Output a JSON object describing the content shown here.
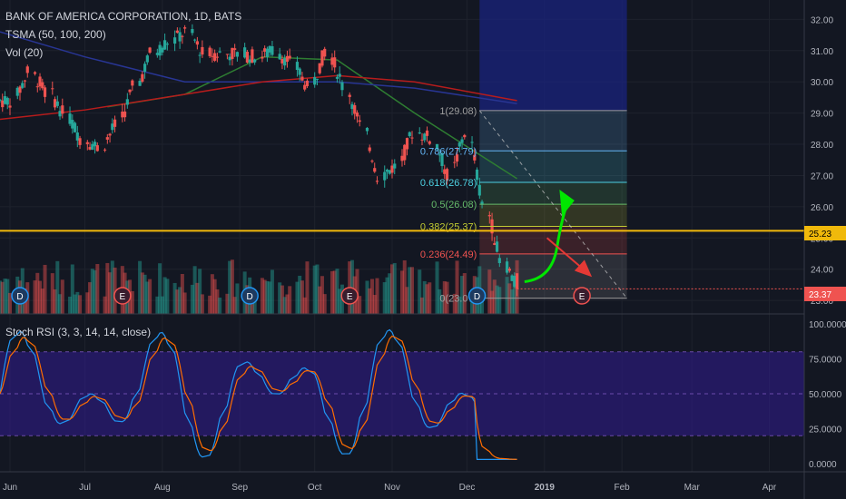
{
  "colors": {
    "bg": "#131722",
    "up": "#26a69a",
    "down": "#ef5350",
    "sma50": "#2e7d32",
    "sma100": "#283593",
    "sma200": "#b71c1c",
    "fib_line": "#cccccc",
    "hline": "#f0b90b",
    "stoch_k": "#2196f3",
    "stoch_d": "#ff6d00",
    "stoch_band": "#311b92",
    "arrow_up": "#00e600",
    "arrow_down": "#e53935"
  },
  "header": {
    "symbol_line": "BANK OF AMERICA CORPORATION, 1D, BATS",
    "ma_line": "TSMA (50, 100, 200)",
    "vol_line": "Vol (20)"
  },
  "price_axis": {
    "ticks": [
      "32.00",
      "31.00",
      "30.00",
      "29.00",
      "28.00",
      "27.00",
      "26.00",
      "25.00",
      "24.00",
      "23.00"
    ],
    "hline_label": "25.23",
    "last_label": "23.37"
  },
  "stoch": {
    "title": "Stoch RSI (3, 3, 14, 14, close)",
    "ticks": [
      "100.0000",
      "75.0000",
      "50.0000",
      "25.0000",
      "0.0000"
    ],
    "upper_band": 80,
    "lower_band": 20
  },
  "time_axis": [
    "Jun",
    "Jul",
    "Aug",
    "Sep",
    "Oct",
    "Nov",
    "Dec",
    "2019",
    "Feb",
    "Mar",
    "Apr"
  ],
  "fib_levels": [
    {
      "label": "1(29.08)",
      "price": 29.08,
      "color": "#9e9e9e"
    },
    {
      "label": "0.786(27.79)",
      "price": 27.79,
      "color": "#64b5f6"
    },
    {
      "label": "0.618(26.78)",
      "price": 26.78,
      "color": "#4dd0e1"
    },
    {
      "label": "0.5(26.08)",
      "price": 26.08,
      "color": "#66bb6a"
    },
    {
      "label": "0.382(25.37)",
      "price": 25.37,
      "color": "#c0ca33"
    },
    {
      "label": "0.236(24.49)",
      "price": 24.49,
      "color": "#ef5350"
    },
    {
      "label": "0(23.07)",
      "price": 23.07,
      "color": "#9e9e9e"
    }
  ],
  "event_badges": [
    {
      "label": "D",
      "date": "2018-06-05"
    },
    {
      "label": "E",
      "date": "2018-07-16"
    },
    {
      "label": "D",
      "date": "2018-09-05"
    },
    {
      "label": "E",
      "date": "2018-10-15"
    },
    {
      "label": "D",
      "date": "2018-12-05"
    },
    {
      "label": "E",
      "date": "2019-01-16"
    }
  ],
  "chart_data": {
    "type": "candlestick",
    "title": "BANK OF AMERICA CORPORATION, 1D, BATS",
    "x_range": [
      "2018-05-28",
      "2019-04-15"
    ],
    "ylim": [
      22.8,
      32.2
    ],
    "weekly_close": [
      {
        "date": "2018-06-01",
        "close": 29.4
      },
      {
        "date": "2018-06-08",
        "close": 30.3
      },
      {
        "date": "2018-06-15",
        "close": 29.7
      },
      {
        "date": "2018-06-22",
        "close": 29.0
      },
      {
        "date": "2018-06-29",
        "close": 28.2
      },
      {
        "date": "2018-07-06",
        "close": 27.9
      },
      {
        "date": "2018-07-13",
        "close": 28.6
      },
      {
        "date": "2018-07-20",
        "close": 29.8
      },
      {
        "date": "2018-07-27",
        "close": 30.9
      },
      {
        "date": "2018-08-03",
        "close": 31.3
      },
      {
        "date": "2018-08-10",
        "close": 31.6
      },
      {
        "date": "2018-08-17",
        "close": 30.9
      },
      {
        "date": "2018-08-24",
        "close": 30.9
      },
      {
        "date": "2018-08-31",
        "close": 30.9
      },
      {
        "date": "2018-09-07",
        "close": 30.8
      },
      {
        "date": "2018-09-14",
        "close": 31.0
      },
      {
        "date": "2018-09-21",
        "close": 30.6
      },
      {
        "date": "2018-09-28",
        "close": 29.8
      },
      {
        "date": "2018-10-05",
        "close": 31.0
      },
      {
        "date": "2018-10-12",
        "close": 29.9
      },
      {
        "date": "2018-10-19",
        "close": 28.6
      },
      {
        "date": "2018-10-26",
        "close": 27.0
      },
      {
        "date": "2018-11-02",
        "close": 27.3
      },
      {
        "date": "2018-11-09",
        "close": 28.4
      },
      {
        "date": "2018-11-16",
        "close": 28.2
      },
      {
        "date": "2018-11-23",
        "close": 27.0
      },
      {
        "date": "2018-11-30",
        "close": 28.4
      },
      {
        "date": "2018-12-07",
        "close": 26.1
      },
      {
        "date": "2018-12-14",
        "close": 24.3
      },
      {
        "date": "2018-12-21",
        "close": 23.37
      }
    ],
    "moving_averages": [
      {
        "name": "SMA 50",
        "values": [
          {
            "date": "2018-07-10",
            "v": 29.2
          },
          {
            "date": "2018-08-10",
            "v": 29.6
          },
          {
            "date": "2018-09-10",
            "v": 30.8
          },
          {
            "date": "2018-10-10",
            "v": 30.7
          },
          {
            "date": "2018-11-10",
            "v": 29.0
          },
          {
            "date": "2018-12-21",
            "v": 26.9
          }
        ]
      },
      {
        "name": "SMA 100",
        "values": [
          {
            "date": "2018-05-28",
            "v": 31.6
          },
          {
            "date": "2018-07-01",
            "v": 30.8
          },
          {
            "date": "2018-08-10",
            "v": 30.0
          },
          {
            "date": "2018-09-10",
            "v": 30.0
          },
          {
            "date": "2018-10-10",
            "v": 30.0
          },
          {
            "date": "2018-11-10",
            "v": 29.8
          },
          {
            "date": "2018-12-21",
            "v": 29.3
          }
        ]
      },
      {
        "name": "SMA 200",
        "values": [
          {
            "date": "2018-05-28",
            "v": 28.8
          },
          {
            "date": "2018-07-01",
            "v": 29.1
          },
          {
            "date": "2018-08-10",
            "v": 29.6
          },
          {
            "date": "2018-09-10",
            "v": 30.0
          },
          {
            "date": "2018-10-10",
            "v": 30.2
          },
          {
            "date": "2018-11-10",
            "v": 30.0
          },
          {
            "date": "2018-12-21",
            "v": 29.4
          }
        ]
      }
    ],
    "horizontal_line": 25.23,
    "last_price": 23.37,
    "fib_anchor_dates": [
      "2018-12-06",
      "2019-02-03"
    ]
  }
}
